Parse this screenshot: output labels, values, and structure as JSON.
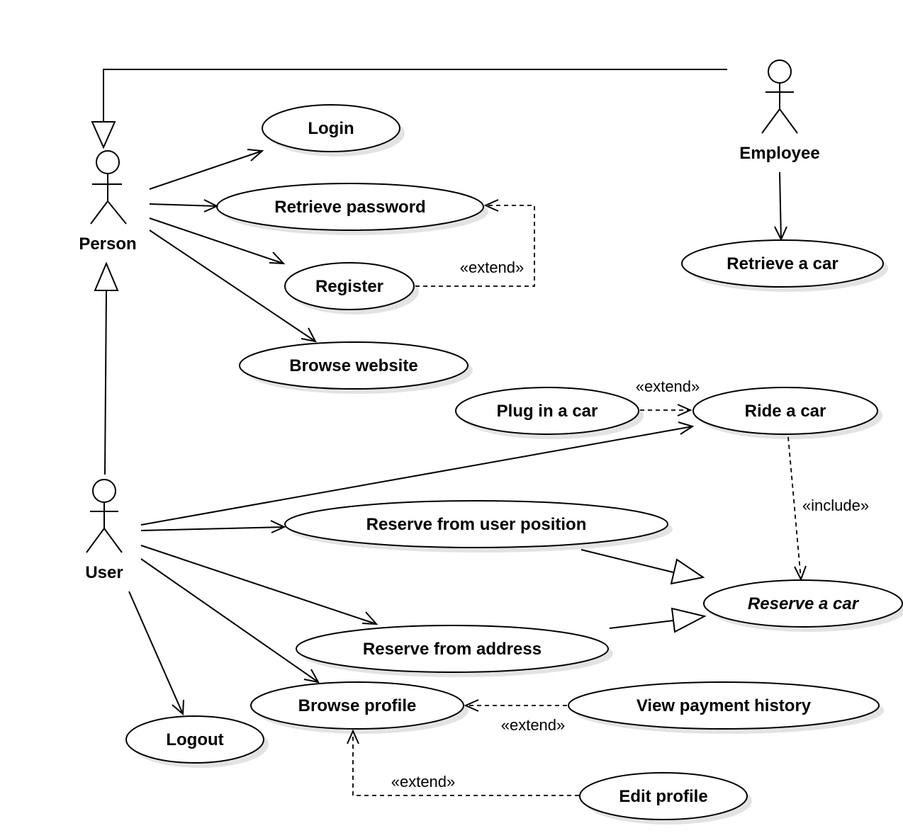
{
  "actors": {
    "person": "Person",
    "employee": "Employee",
    "user": "User"
  },
  "use_cases": {
    "login": "Login",
    "retrieve_password": "Retrieve password",
    "register": "Register",
    "browse_website": "Browse website",
    "retrieve_a_car": "Retrieve a car",
    "plug_in_a_car": "Plug in a car",
    "ride_a_car": "Ride a car",
    "reserve_from_user_position": "Reserve from user position",
    "reserve_a_car": "Reserve a car",
    "reserve_from_address": "Reserve from address",
    "browse_profile": "Browse profile",
    "view_payment_history": "View payment history",
    "logout": "Logout",
    "edit_profile": "Edit profile"
  },
  "stereotypes": {
    "extend_register": "«extend»",
    "extend_plug": "«extend»",
    "include_reserve": "«include»",
    "extend_payment": "«extend»",
    "extend_edit": "«extend»"
  }
}
